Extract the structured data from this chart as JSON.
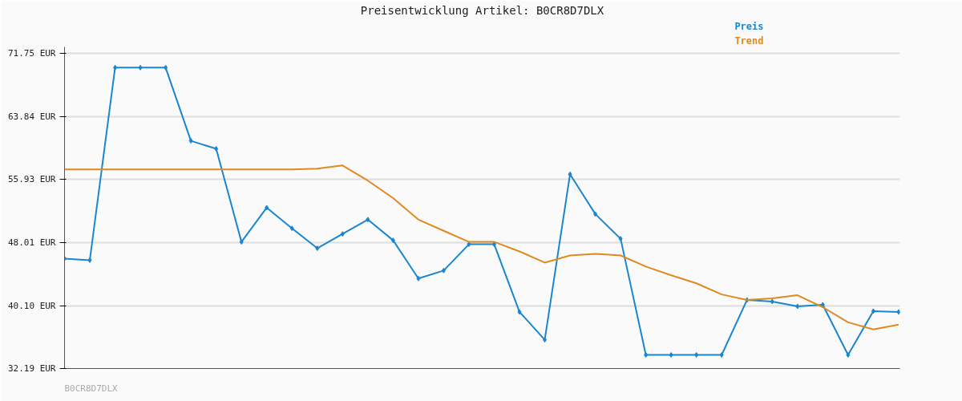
{
  "chart_data": {
    "type": "line",
    "title": "Preisentwicklung Artikel: B0CR8D7DLX",
    "categories": [
      null,
      null,
      null,
      null,
      null,
      null,
      null,
      null,
      null,
      null,
      null,
      null,
      null,
      null,
      null,
      null,
      null,
      null,
      null,
      null,
      null,
      null,
      null,
      null,
      null,
      null,
      null,
      null,
      null,
      null,
      null,
      null,
      null,
      null
    ],
    "series": [
      {
        "name": "Preis",
        "color": "#1a86d0",
        "marker": "diamond",
        "values": [
          46.0,
          45.8,
          70.0,
          70.0,
          70.0,
          60.8,
          59.8,
          48.1,
          52.4,
          49.8,
          47.3,
          49.1,
          50.9,
          48.3,
          43.5,
          44.5,
          47.8,
          47.8,
          39.3,
          35.8,
          56.6,
          51.6,
          48.5,
          33.9,
          33.9,
          33.9,
          33.9,
          40.8,
          40.6,
          40.0,
          40.2,
          33.9,
          39.4,
          39.3
        ]
      },
      {
        "name": "Trend",
        "color": "#e08a1e",
        "marker": "none",
        "values": [
          57.2,
          57.2,
          57.2,
          57.2,
          57.2,
          57.2,
          57.2,
          57.2,
          57.2,
          57.2,
          57.3,
          57.7,
          55.8,
          53.6,
          50.9,
          49.5,
          48.1,
          48.1,
          46.9,
          45.5,
          46.4,
          46.6,
          46.4,
          45.0,
          43.9,
          42.9,
          41.5,
          40.8,
          41.0,
          41.4,
          39.9,
          38.0,
          37.1,
          37.7
        ]
      }
    ],
    "ylim": [
      32.19,
      72.6
    ],
    "yticks": [
      {
        "value": 32.19,
        "label": "32.19 EUR"
      },
      {
        "value": 40.1,
        "label": "40.10 EUR"
      },
      {
        "value": 48.01,
        "label": "48.01 EUR"
      },
      {
        "value": 55.93,
        "label": "55.93 EUR"
      },
      {
        "value": 63.84,
        "label": "63.84 EUR"
      },
      {
        "value": 71.75,
        "label": "71.75 EUR"
      }
    ],
    "tick_labels": "y",
    "grid": "y",
    "line_style": "solid",
    "annotations": [
      "B0CR8D7DLX"
    ]
  }
}
